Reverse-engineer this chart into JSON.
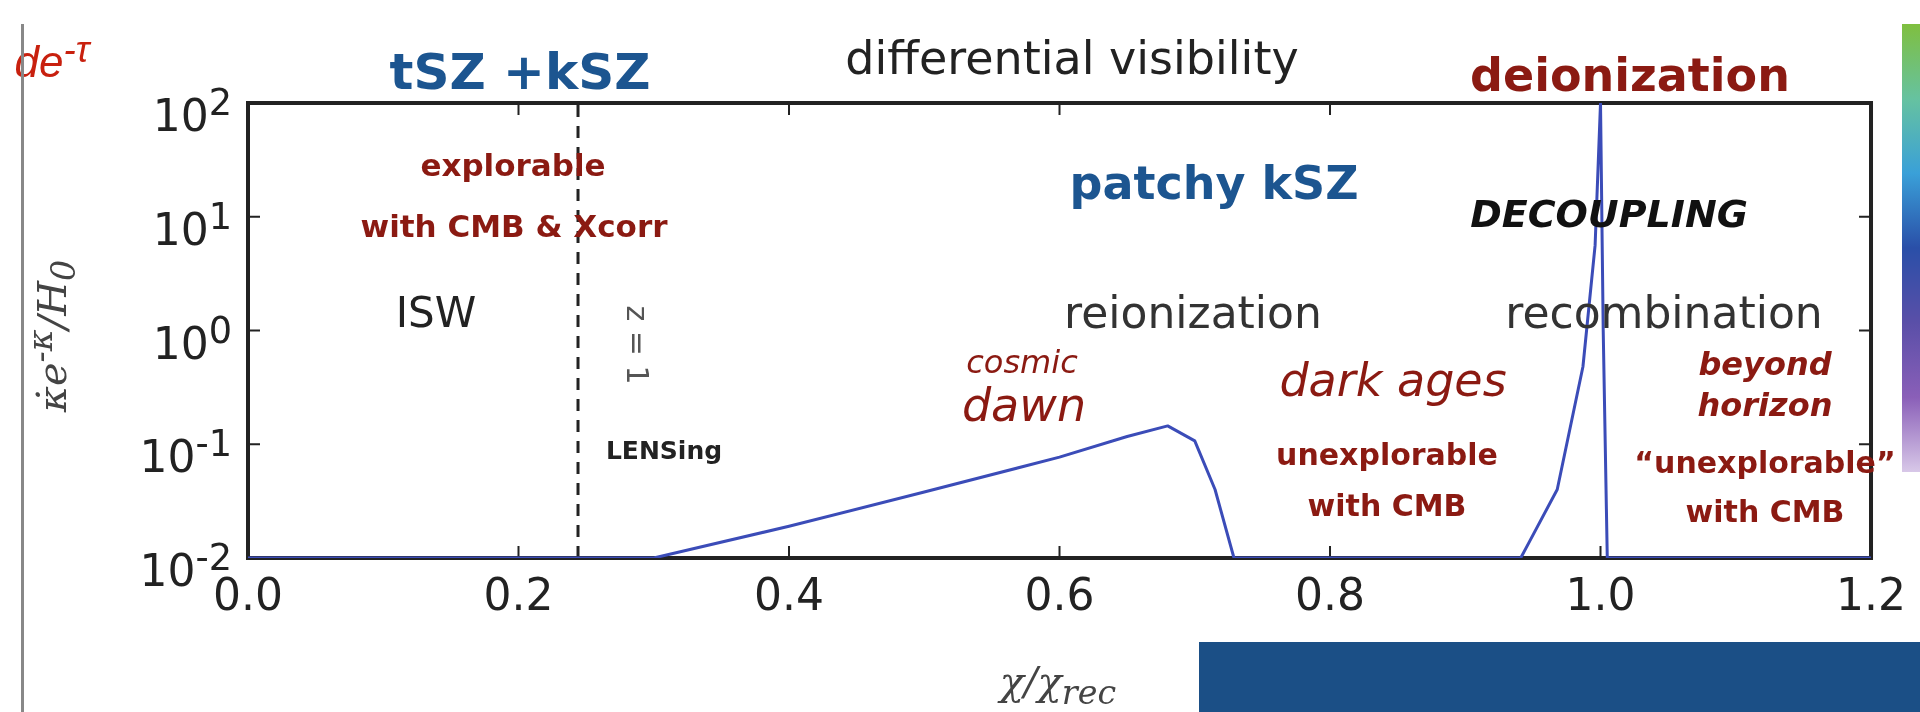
{
  "chart_data": {
    "type": "line",
    "title": "differential visibility",
    "xlabel": "χ/χ$_{rec}$",
    "ylabel": "κ̇e$^{-κ}$/H$_{0}$",
    "x": [
      0,
      0.3,
      0.4,
      0.5,
      0.6,
      0.65,
      0.68,
      0.7,
      0.715,
      0.729,
      0.941,
      0.968,
      0.987,
      0.996,
      1.0,
      1.002,
      1.005,
      1.2
    ],
    "series": [
      {
        "color": "#3b4cb8",
        "values": [
          0.01,
          0.01,
          0.019,
          0.038,
          0.077,
          0.117,
          0.145,
          0.107,
          0.04,
          0.01,
          0.01,
          0.04,
          0.48,
          5.6,
          100,
          1,
          0.01,
          0.01
        ]
      }
    ],
    "log": "y",
    "xlim": [
      0,
      1.2
    ],
    "ylim": [
      0.01,
      100
    ],
    "xticks": [
      {
        "value": 0,
        "label": "0.0"
      },
      0.2,
      0.4,
      0.6,
      0.8,
      {
        "value": 1,
        "label": "1.0"
      },
      1.2
    ],
    "yticks": [
      {
        "value": 0.01,
        "label": "10$^{-2}$"
      },
      {
        "value": 0.1,
        "label": "10$^{-1}$"
      },
      {
        "value": 1,
        "label": "10$^{0}$"
      },
      {
        "value": 10,
        "label": "10$^{1}$"
      },
      {
        "value": 100,
        "label": "10$^{2}$"
      }
    ],
    "grid": false,
    "legend": false,
    "marker": "none",
    "line_style": "solid",
    "ref_lines": [
      {
        "axis": "x",
        "value": 0.244,
        "line_style": "dashed",
        "color": "#222222"
      }
    ],
    "annotations": [
      "z = 1",
      "de$^{-τ}$",
      "tSZ +kSZ",
      "deionization",
      "explorable",
      "with CMB & Xcorr",
      "ISW",
      "LENSing",
      "patchy kSZ",
      "DECOUPLING",
      "reionization",
      "recombination",
      "cosmic",
      "dawn",
      "dark ages",
      "unexplorable",
      "with CMB",
      "beyond",
      "horizon",
      "“unexplorable”",
      "with CMB"
    ]
  }
}
